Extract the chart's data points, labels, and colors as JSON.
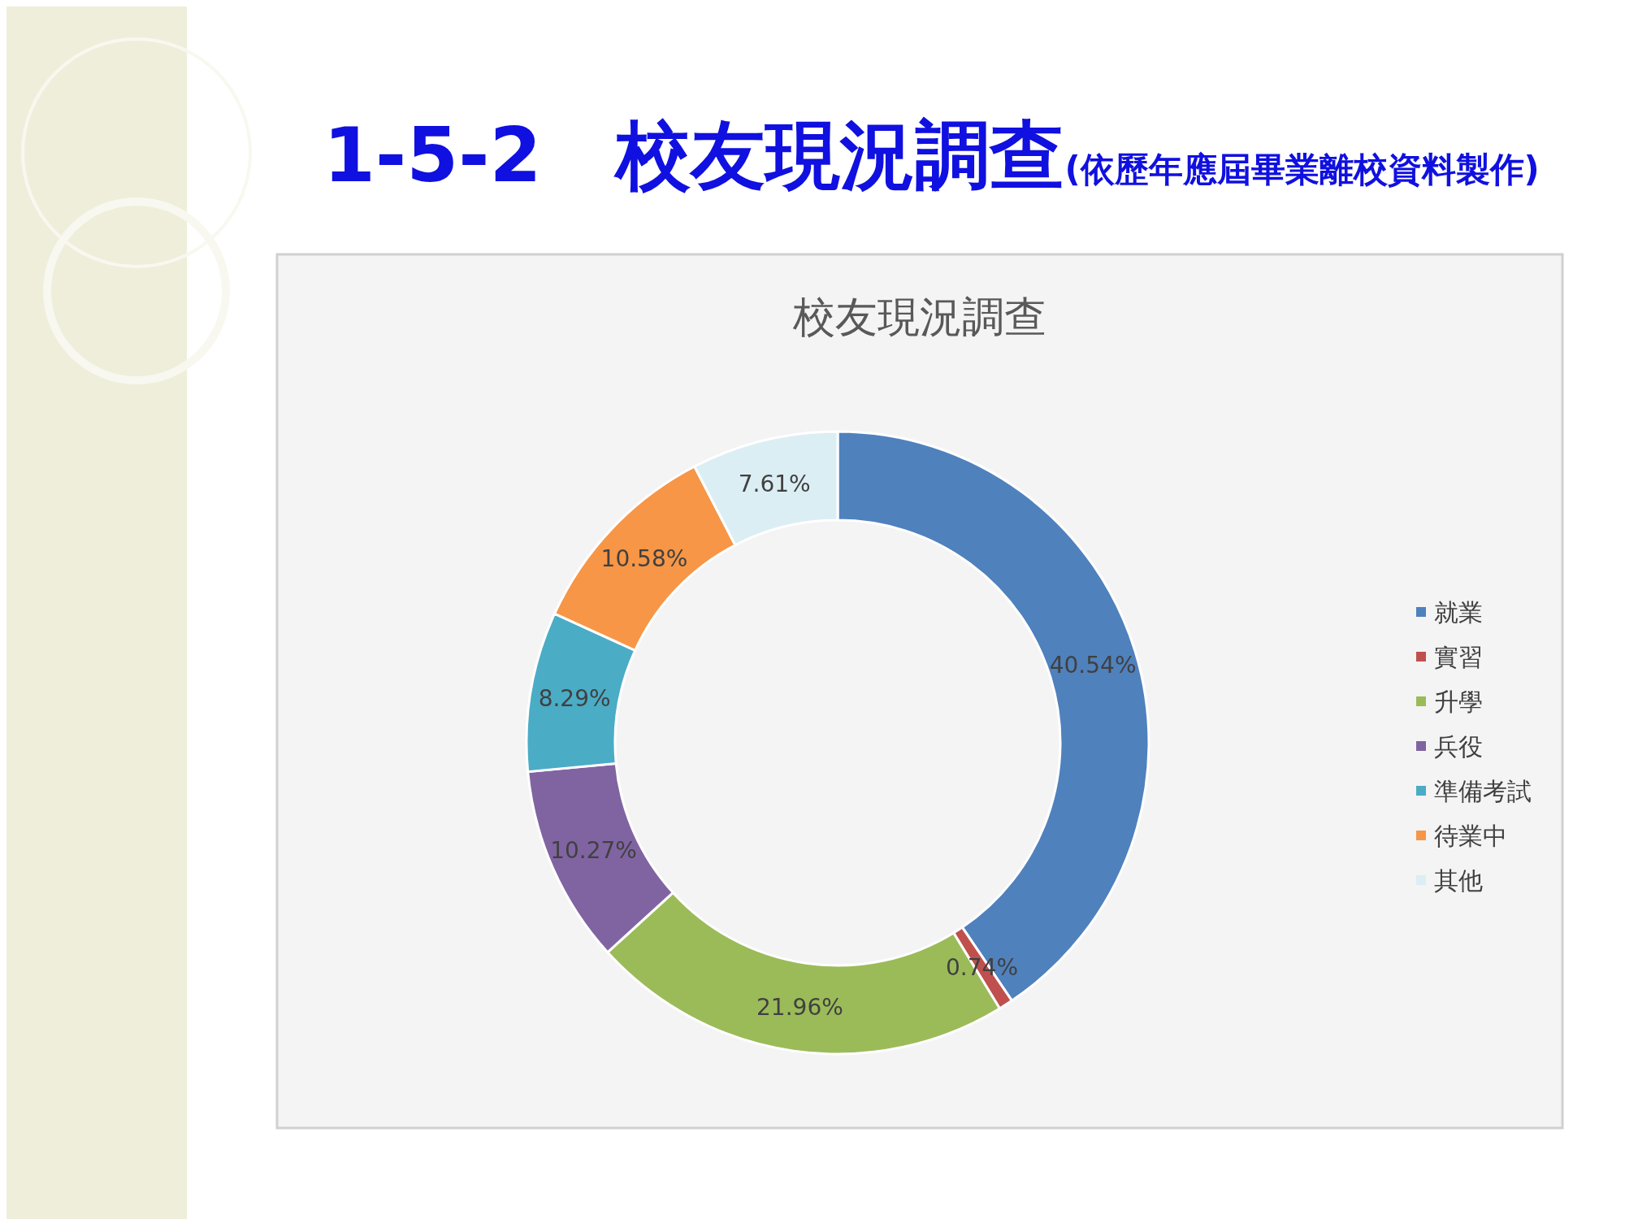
{
  "chart_data": {
    "type": "donut",
    "title": "1-5-2　校友現況調查(依歷年應屆畢業離校資料製作)",
    "subtitle": "校友現況調查",
    "categories": [
      "就業",
      "實習",
      "升學",
      "兵役",
      "準備考試",
      "待業中",
      "其他"
    ],
    "values": [
      40.54,
      0.74,
      21.96,
      10.27,
      8.29,
      10.58,
      7.61
    ],
    "value_labels": [
      "40.54%",
      "0.74%",
      "21.96%",
      "10.27%",
      "8.29%",
      "10.58%",
      "7.61%"
    ],
    "colors": [
      "#4f81bd",
      "#c0504d",
      "#9bbb59",
      "#8064a2",
      "#4bacc6",
      "#f79646",
      "#dbeef4"
    ],
    "legend": "right"
  }
}
